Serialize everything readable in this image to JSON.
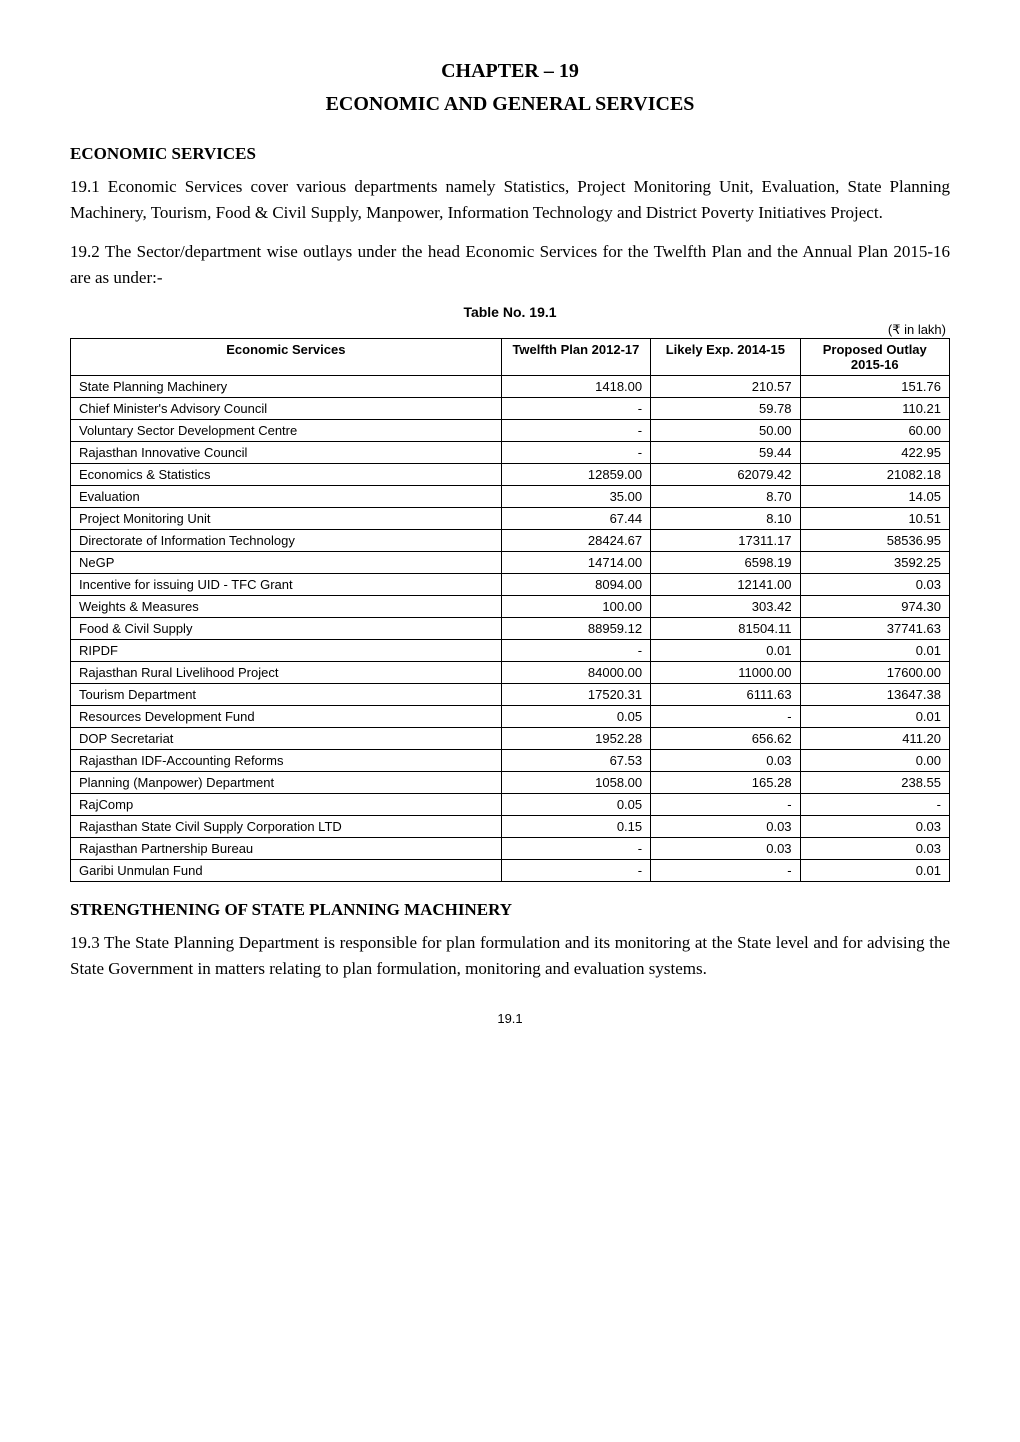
{
  "chapter": {
    "title": "CHAPTER – 19",
    "subtitle": "ECONOMIC AND GENERAL SERVICES"
  },
  "section1": {
    "heading": "ECONOMIC SERVICES",
    "para1": "19.1 Economic Services cover various departments namely Statistics, Project Monitoring Unit, Evaluation, State Planning Machinery, Tourism, Food & Civil Supply, Manpower, Information Technology and District Poverty Initiatives Project.",
    "para2": "19.2 The Sector/department wise outlays under the head Economic Services for the Twelfth Plan and the Annual Plan 2015-16 are as under:-"
  },
  "table": {
    "caption": "Table No. 19.1",
    "unit": "(₹ in lakh)",
    "headers": {
      "c0": "Economic Services",
      "c1": "Twelfth Plan 2012-17",
      "c2": "Likely Exp. 2014-15",
      "c3": "Proposed Outlay 2015-16"
    },
    "rows": [
      {
        "label": "State Planning Machinery",
        "v1": "1418.00",
        "v2": "210.57",
        "v3": "151.76"
      },
      {
        "label": "Chief Minister's Advisory Council",
        "v1": "-",
        "v2": "59.78",
        "v3": "110.21"
      },
      {
        "label": "Voluntary Sector Development Centre",
        "v1": "-",
        "v2": "50.00",
        "v3": "60.00"
      },
      {
        "label": "Rajasthan Innovative Council",
        "v1": "-",
        "v2": "59.44",
        "v3": "422.95"
      },
      {
        "label": "Economics & Statistics",
        "v1": "12859.00",
        "v2": "62079.42",
        "v3": "21082.18"
      },
      {
        "label": "Evaluation",
        "v1": "35.00",
        "v2": "8.70",
        "v3": "14.05"
      },
      {
        "label": "Project Monitoring Unit",
        "v1": "67.44",
        "v2": "8.10",
        "v3": "10.51"
      },
      {
        "label": "Directorate of Information Technology",
        "v1": "28424.67",
        "v2": "17311.17",
        "v3": "58536.95"
      },
      {
        "label": "NeGP",
        "v1": "14714.00",
        "v2": "6598.19",
        "v3": "3592.25"
      },
      {
        "label": "Incentive for issuing UID - TFC Grant",
        "v1": "8094.00",
        "v2": "12141.00",
        "v3": "0.03"
      },
      {
        "label": "Weights & Measures",
        "v1": "100.00",
        "v2": "303.42",
        "v3": "974.30"
      },
      {
        "label": "Food & Civil Supply",
        "v1": "88959.12",
        "v2": "81504.11",
        "v3": "37741.63"
      },
      {
        "label": "RIPDF",
        "v1": "-",
        "v2": "0.01",
        "v3": "0.01"
      },
      {
        "label": "Rajasthan Rural Livelihood Project",
        "v1": "84000.00",
        "v2": "11000.00",
        "v3": "17600.00"
      },
      {
        "label": "Tourism Department",
        "v1": "17520.31",
        "v2": "6111.63",
        "v3": "13647.38"
      },
      {
        "label": "Resources Development Fund",
        "v1": "0.05",
        "v2": "-",
        "v3": "0.01"
      },
      {
        "label": "DOP Secretariat",
        "v1": "1952.28",
        "v2": "656.62",
        "v3": "411.20"
      },
      {
        "label": "Rajasthan IDF-Accounting Reforms",
        "v1": "67.53",
        "v2": "0.03",
        "v3": "0.00"
      },
      {
        "label": "Planning (Manpower) Department",
        "v1": "1058.00",
        "v2": "165.28",
        "v3": "238.55"
      },
      {
        "label": "RajComp",
        "v1": "0.05",
        "v2": "-",
        "v3": "-"
      },
      {
        "label": "Rajasthan State Civil Supply Corporation LTD",
        "v1": "0.15",
        "v2": "0.03",
        "v3": "0.03"
      },
      {
        "label": "Rajasthan Partnership Bureau",
        "v1": "-",
        "v2": "0.03",
        "v3": "0.03"
      },
      {
        "label": "Garibi Unmulan Fund",
        "v1": "-",
        "v2": "-",
        "v3": "0.01"
      }
    ]
  },
  "section2": {
    "heading": "STRENGTHENING OF STATE PLANNING MACHINERY",
    "para1": "19.3 The State Planning Department is responsible for plan formulation and its monitoring at the State level and for advising the State Government in matters relating to plan formulation, monitoring and evaluation systems."
  },
  "pageNumber": "19.1",
  "style": {
    "colWidths": [
      "49%",
      "17%",
      "17%",
      "17%"
    ]
  }
}
